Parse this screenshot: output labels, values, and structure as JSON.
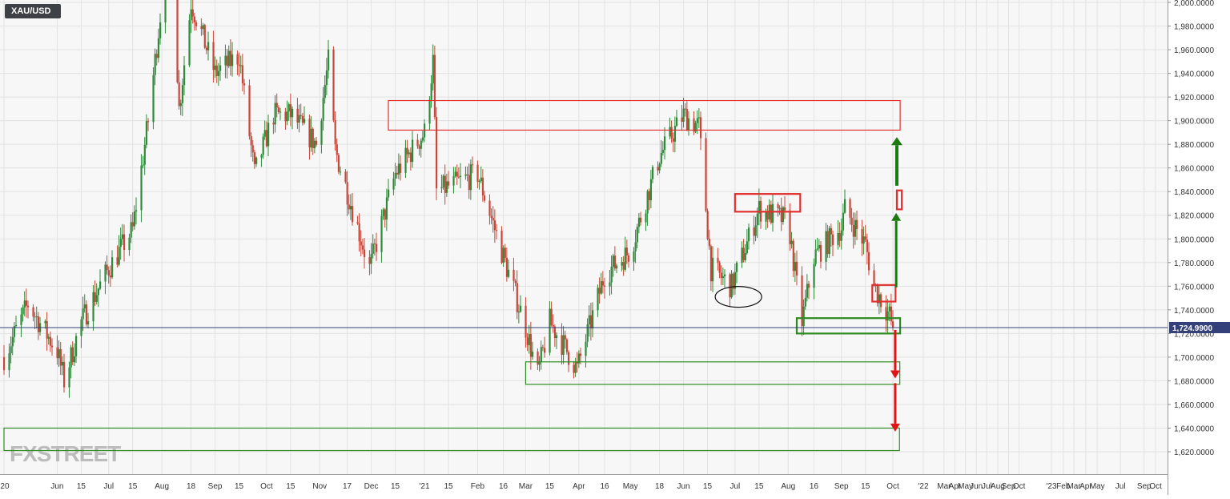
{
  "symbol": "XAU/USD",
  "watermark": "FXSTREET",
  "colors": {
    "up": "#2e8b3a",
    "down": "#c9473a",
    "background": "#f7f7f7",
    "grid": "#e2e2e2",
    "price_line": "#33407a",
    "price_badge": "#33407a",
    "resistance_box": "#e03030",
    "support_box": "#2e8b22",
    "arrow_up": "#1a7a10",
    "arrow_down": "#e01515"
  },
  "chart_data": {
    "type": "candlestick",
    "title": "XAU/USD",
    "current_price": 1724.99,
    "current_price_label": "1,724.9900",
    "ylim": [
      1604,
      2012
    ],
    "y_ticks": [
      {
        "value": 2000,
        "label": "2,000.0000"
      },
      {
        "value": 1980,
        "label": "1,980.0000"
      },
      {
        "value": 1960,
        "label": "1,960.0000"
      },
      {
        "value": 1940,
        "label": "1,940.0000"
      },
      {
        "value": 1920,
        "label": "1,920.0000"
      },
      {
        "value": 1900,
        "label": "1,900.0000"
      },
      {
        "value": 1880,
        "label": "1,880.0000"
      },
      {
        "value": 1860,
        "label": "1,860.0000"
      },
      {
        "value": 1840,
        "label": "1,840.0000"
      },
      {
        "value": 1820,
        "label": "1,820.0000"
      },
      {
        "value": 1800,
        "label": "1,800.0000"
      },
      {
        "value": 1780,
        "label": "1,780.0000"
      },
      {
        "value": 1760,
        "label": "1,760.0000"
      },
      {
        "value": 1740,
        "label": "1,740.0000"
      },
      {
        "value": 1720,
        "label": "1,720.0000"
      },
      {
        "value": 1700,
        "label": "1,700.0000"
      },
      {
        "value": 1680,
        "label": "1,680.0000"
      },
      {
        "value": 1660,
        "label": "1,660.0000"
      },
      {
        "value": 1640,
        "label": "1,640.0000"
      },
      {
        "value": 1620,
        "label": "1,620.0000"
      }
    ],
    "x_ticks": [
      {
        "date": "2020-05-01",
        "label": "'20"
      },
      {
        "date": "2020-06-01",
        "label": "Jun"
      },
      {
        "date": "2020-06-15",
        "label": "15"
      },
      {
        "date": "2020-07-01",
        "label": "Jul"
      },
      {
        "date": "2020-07-15",
        "label": "15"
      },
      {
        "date": "2020-08-01",
        "label": "Aug"
      },
      {
        "date": "2020-08-18",
        "label": "18"
      },
      {
        "date": "2020-09-01",
        "label": "Sep"
      },
      {
        "date": "2020-09-15",
        "label": "15"
      },
      {
        "date": "2020-10-01",
        "label": "Oct"
      },
      {
        "date": "2020-10-15",
        "label": "15"
      },
      {
        "date": "2020-11-01",
        "label": "Nov"
      },
      {
        "date": "2020-11-17",
        "label": "17"
      },
      {
        "date": "2020-12-01",
        "label": "Dec"
      },
      {
        "date": "2020-12-15",
        "label": "15"
      },
      {
        "date": "2021-01-01",
        "label": "'21"
      },
      {
        "date": "2021-01-15",
        "label": "15"
      },
      {
        "date": "2021-02-01",
        "label": "Feb"
      },
      {
        "date": "2021-02-16",
        "label": "16"
      },
      {
        "date": "2021-03-01",
        "label": "Mar"
      },
      {
        "date": "2021-03-15",
        "label": "15"
      },
      {
        "date": "2021-04-01",
        "label": "Apr"
      },
      {
        "date": "2021-04-16",
        "label": "16"
      },
      {
        "date": "2021-05-01",
        "label": "May"
      },
      {
        "date": "2021-05-18",
        "label": "18"
      },
      {
        "date": "2021-06-01",
        "label": "Jun"
      },
      {
        "date": "2021-06-15",
        "label": "15"
      },
      {
        "date": "2021-07-01",
        "label": "Jul"
      },
      {
        "date": "2021-07-15",
        "label": "15"
      },
      {
        "date": "2021-08-01",
        "label": "Aug"
      },
      {
        "date": "2021-08-16",
        "label": "16"
      },
      {
        "date": "2021-09-01",
        "label": "Sep"
      },
      {
        "date": "2021-09-15",
        "label": "15"
      },
      {
        "date": "2021-10-01",
        "label": "Oct"
      },
      {
        "date": "2022-01-01",
        "label": "'22"
      },
      {
        "date": "2022-03-01",
        "label": "Mar"
      },
      {
        "date": "2022-04-01",
        "label": "Apr"
      },
      {
        "date": "2022-05-01",
        "label": "May"
      },
      {
        "date": "2022-06-01",
        "label": "Jun"
      },
      {
        "date": "2022-07-01",
        "label": "Jul"
      },
      {
        "date": "2022-08-01",
        "label": "Aug"
      },
      {
        "date": "2022-09-01",
        "label": "Sep"
      },
      {
        "date": "2022-10-01",
        "label": "Oct"
      },
      {
        "date": "2023-01-01",
        "label": "'23"
      },
      {
        "date": "2023-02-01",
        "label": "Feb"
      },
      {
        "date": "2023-03-01",
        "label": "Mar"
      },
      {
        "date": "2023-04-01",
        "label": "Apr"
      },
      {
        "date": "2023-05-01",
        "label": "May"
      },
      {
        "date": "2023-07-01",
        "label": "Jul"
      },
      {
        "date": "2023-09-01",
        "label": "Sep"
      },
      {
        "date": "2023-10-01",
        "label": "Oct"
      }
    ],
    "price_path": [
      {
        "date": "2020-05-01",
        "close": 1700
      },
      {
        "date": "2020-05-15",
        "close": 1745
      },
      {
        "date": "2020-06-01",
        "close": 1705
      },
      {
        "date": "2020-06-05",
        "close": 1680
      },
      {
        "date": "2020-06-15",
        "close": 1730
      },
      {
        "date": "2020-07-01",
        "close": 1775
      },
      {
        "date": "2020-07-15",
        "close": 1808
      },
      {
        "date": "2020-07-24",
        "close": 1900
      },
      {
        "date": "2020-08-06",
        "close": 2065
      },
      {
        "date": "2020-08-11",
        "close": 1910
      },
      {
        "date": "2020-08-18",
        "close": 2000
      },
      {
        "date": "2020-09-01",
        "close": 1940
      },
      {
        "date": "2020-09-15",
        "close": 1955
      },
      {
        "date": "2020-09-24",
        "close": 1855
      },
      {
        "date": "2020-10-05",
        "close": 1905
      },
      {
        "date": "2020-10-15",
        "close": 1905
      },
      {
        "date": "2020-10-30",
        "close": 1880
      },
      {
        "date": "2020-11-06",
        "close": 1950
      },
      {
        "date": "2020-11-10",
        "close": 1875
      },
      {
        "date": "2020-11-30",
        "close": 1775
      },
      {
        "date": "2020-12-15",
        "close": 1855
      },
      {
        "date": "2021-01-01",
        "close": 1890
      },
      {
        "date": "2021-01-06",
        "close": 1950
      },
      {
        "date": "2021-01-08",
        "close": 1840
      },
      {
        "date": "2021-02-01",
        "close": 1855
      },
      {
        "date": "2021-02-16",
        "close": 1785
      },
      {
        "date": "2021-03-01",
        "close": 1725
      },
      {
        "date": "2021-03-08",
        "close": 1685
      },
      {
        "date": "2021-03-15",
        "close": 1730
      },
      {
        "date": "2021-03-31",
        "close": 1690
      },
      {
        "date": "2021-04-16",
        "close": 1770
      },
      {
        "date": "2021-05-01",
        "close": 1790
      },
      {
        "date": "2021-05-18",
        "close": 1870
      },
      {
        "date": "2021-06-01",
        "close": 1905
      },
      {
        "date": "2021-06-10",
        "close": 1895
      },
      {
        "date": "2021-06-17",
        "close": 1775
      },
      {
        "date": "2021-06-29",
        "close": 1760
      },
      {
        "date": "2021-07-15",
        "close": 1825
      },
      {
        "date": "2021-08-01",
        "close": 1815
      },
      {
        "date": "2021-08-06",
        "close": 1760
      },
      {
        "date": "2021-08-09",
        "close": 1730
      },
      {
        "date": "2021-08-16",
        "close": 1785
      },
      {
        "date": "2021-09-01",
        "close": 1810
      },
      {
        "date": "2021-09-03",
        "close": 1825
      },
      {
        "date": "2021-09-15",
        "close": 1795
      },
      {
        "date": "2021-09-20",
        "close": 1760
      },
      {
        "date": "2021-09-29",
        "close": 1735
      },
      {
        "date": "2021-10-01",
        "close": 1725
      }
    ],
    "annotations": [
      {
        "type": "zone",
        "role": "resistance",
        "from_date": "2020-12-11",
        "to_date": "2021-10-23",
        "low": 1892,
        "high": 1917
      },
      {
        "type": "zone",
        "role": "resistance",
        "from_date": "2021-07-01",
        "to_date": "2021-08-08",
        "low": 1823,
        "high": 1838
      },
      {
        "type": "zone",
        "role": "resistance",
        "from_date": "2021-10-13",
        "to_date": "2021-10-28",
        "low": 1825,
        "high": 1841
      },
      {
        "type": "zone",
        "role": "resistance",
        "from_date": "2021-09-19",
        "to_date": "2021-10-09",
        "low": 1747,
        "high": 1761
      },
      {
        "type": "zone",
        "role": "support",
        "from_date": "2021-08-06",
        "to_date": "2021-10-23",
        "low": 1720,
        "high": 1733
      },
      {
        "type": "zone",
        "role": "support",
        "from_date": "2021-03-01",
        "to_date": "2021-10-22",
        "low": 1677,
        "high": 1696
      },
      {
        "type": "zone",
        "role": "support",
        "from_date": "2020-05-01",
        "to_date": "2021-10-21",
        "low": 1621,
        "high": 1640
      },
      {
        "type": "ellipse",
        "date": "2021-07-03",
        "price": 1751
      },
      {
        "type": "arrow",
        "direction": "up",
        "date": "2021-10-11",
        "from": 1759,
        "to": 1822
      },
      {
        "type": "arrow",
        "direction": "up",
        "date": "2021-10-13",
        "from": 1845,
        "to": 1886
      },
      {
        "type": "arrow",
        "direction": "down",
        "date": "2021-10-08",
        "from": 1723,
        "to": 1682
      },
      {
        "type": "arrow",
        "direction": "down",
        "date": "2021-10-08",
        "from": 1678,
        "to": 1637
      }
    ]
  }
}
